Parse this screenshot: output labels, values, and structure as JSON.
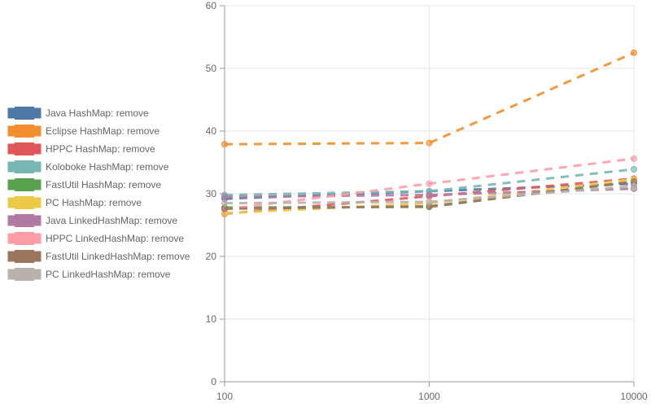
{
  "chart_data": {
    "type": "line",
    "x_scale": "log",
    "xlim": [
      100,
      10000
    ],
    "ylim": [
      0,
      60
    ],
    "x_ticks": [
      "100",
      "1000",
      "10000"
    ],
    "y_ticks": [
      "0",
      "10",
      "20",
      "30",
      "40",
      "50",
      "60"
    ],
    "grid": true,
    "legend_position": "left",
    "line_style": "dashed",
    "x": [
      100,
      1000,
      10000
    ],
    "series": [
      {
        "name": "Java HashMap: remove",
        "color": "#4e79a7",
        "values": [
          29.2,
          30.4,
          31.6
        ]
      },
      {
        "name": "Eclipse HashMap: remove",
        "color": "#f28e2b",
        "values": [
          37.9,
          38.1,
          52.5
        ]
      },
      {
        "name": "HPPC HashMap: remove",
        "color": "#e15759",
        "values": [
          26.8,
          29.6,
          32.4
        ]
      },
      {
        "name": "Koloboke HashMap: remove",
        "color": "#76b7b2",
        "values": [
          29.8,
          30.4,
          33.9
        ]
      },
      {
        "name": "FastUtil HashMap: remove",
        "color": "#59a14f",
        "values": [
          27.8,
          27.9,
          32.0
        ]
      },
      {
        "name": "PC HashMap: remove",
        "color": "#edc948",
        "values": [
          26.9,
          28.5,
          32.3
        ]
      },
      {
        "name": "Java LinkedHashMap: remove",
        "color": "#b07aa1",
        "values": [
          29.5,
          29.8,
          30.8
        ]
      },
      {
        "name": "HPPC LinkedHashMap: remove",
        "color": "#ff9da7",
        "values": [
          27.5,
          31.6,
          35.6
        ]
      },
      {
        "name": "FastUtil LinkedHashMap: remove",
        "color": "#9c755f",
        "values": [
          27.6,
          28.0,
          31.9
        ]
      },
      {
        "name": "PC LinkedHashMap: remove",
        "color": "#bab0ac",
        "values": [
          28.5,
          28.7,
          31.2
        ]
      }
    ]
  }
}
